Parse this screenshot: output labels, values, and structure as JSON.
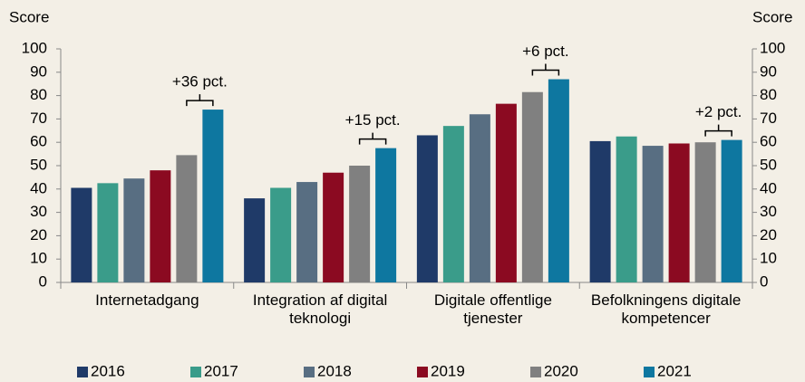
{
  "chart_data": {
    "type": "bar",
    "y_label": "Score",
    "y2_label": "Score",
    "categories": [
      "Internetadgang",
      "Integration af digital teknologi",
      "Digitale offentlige tjenester",
      "Befolkningens digitale kompetencer"
    ],
    "series": [
      {
        "name": "2016",
        "color": "#1f3a68",
        "values": [
          40.5,
          36,
          63,
          60.5
        ]
      },
      {
        "name": "2017",
        "color": "#3a9c8a",
        "values": [
          42.5,
          40.5,
          67,
          62.5
        ]
      },
      {
        "name": "2018",
        "color": "#586e82",
        "values": [
          44.5,
          43,
          72,
          58.5
        ]
      },
      {
        "name": "2019",
        "color": "#8b0a21",
        "values": [
          48,
          47,
          76.5,
          59.5
        ]
      },
      {
        "name": "2020",
        "color": "#808080",
        "values": [
          54.5,
          50,
          81.5,
          60
        ]
      },
      {
        "name": "2021",
        "color": "#0e77a0",
        "values": [
          74,
          57.5,
          87,
          61
        ]
      }
    ],
    "annotations": [
      "+36 pct.",
      "+15 pct.",
      "+6 pct.",
      "+2 pct."
    ],
    "ylim": [
      0,
      100
    ],
    "yticks": [
      0,
      10,
      20,
      30,
      40,
      50,
      60,
      70,
      80,
      90,
      100
    ],
    "y2lim": [
      0,
      100
    ],
    "y2ticks": [
      0,
      10,
      20,
      30,
      40,
      50,
      60,
      70,
      80,
      90,
      100
    ],
    "legend": "bottom"
  }
}
